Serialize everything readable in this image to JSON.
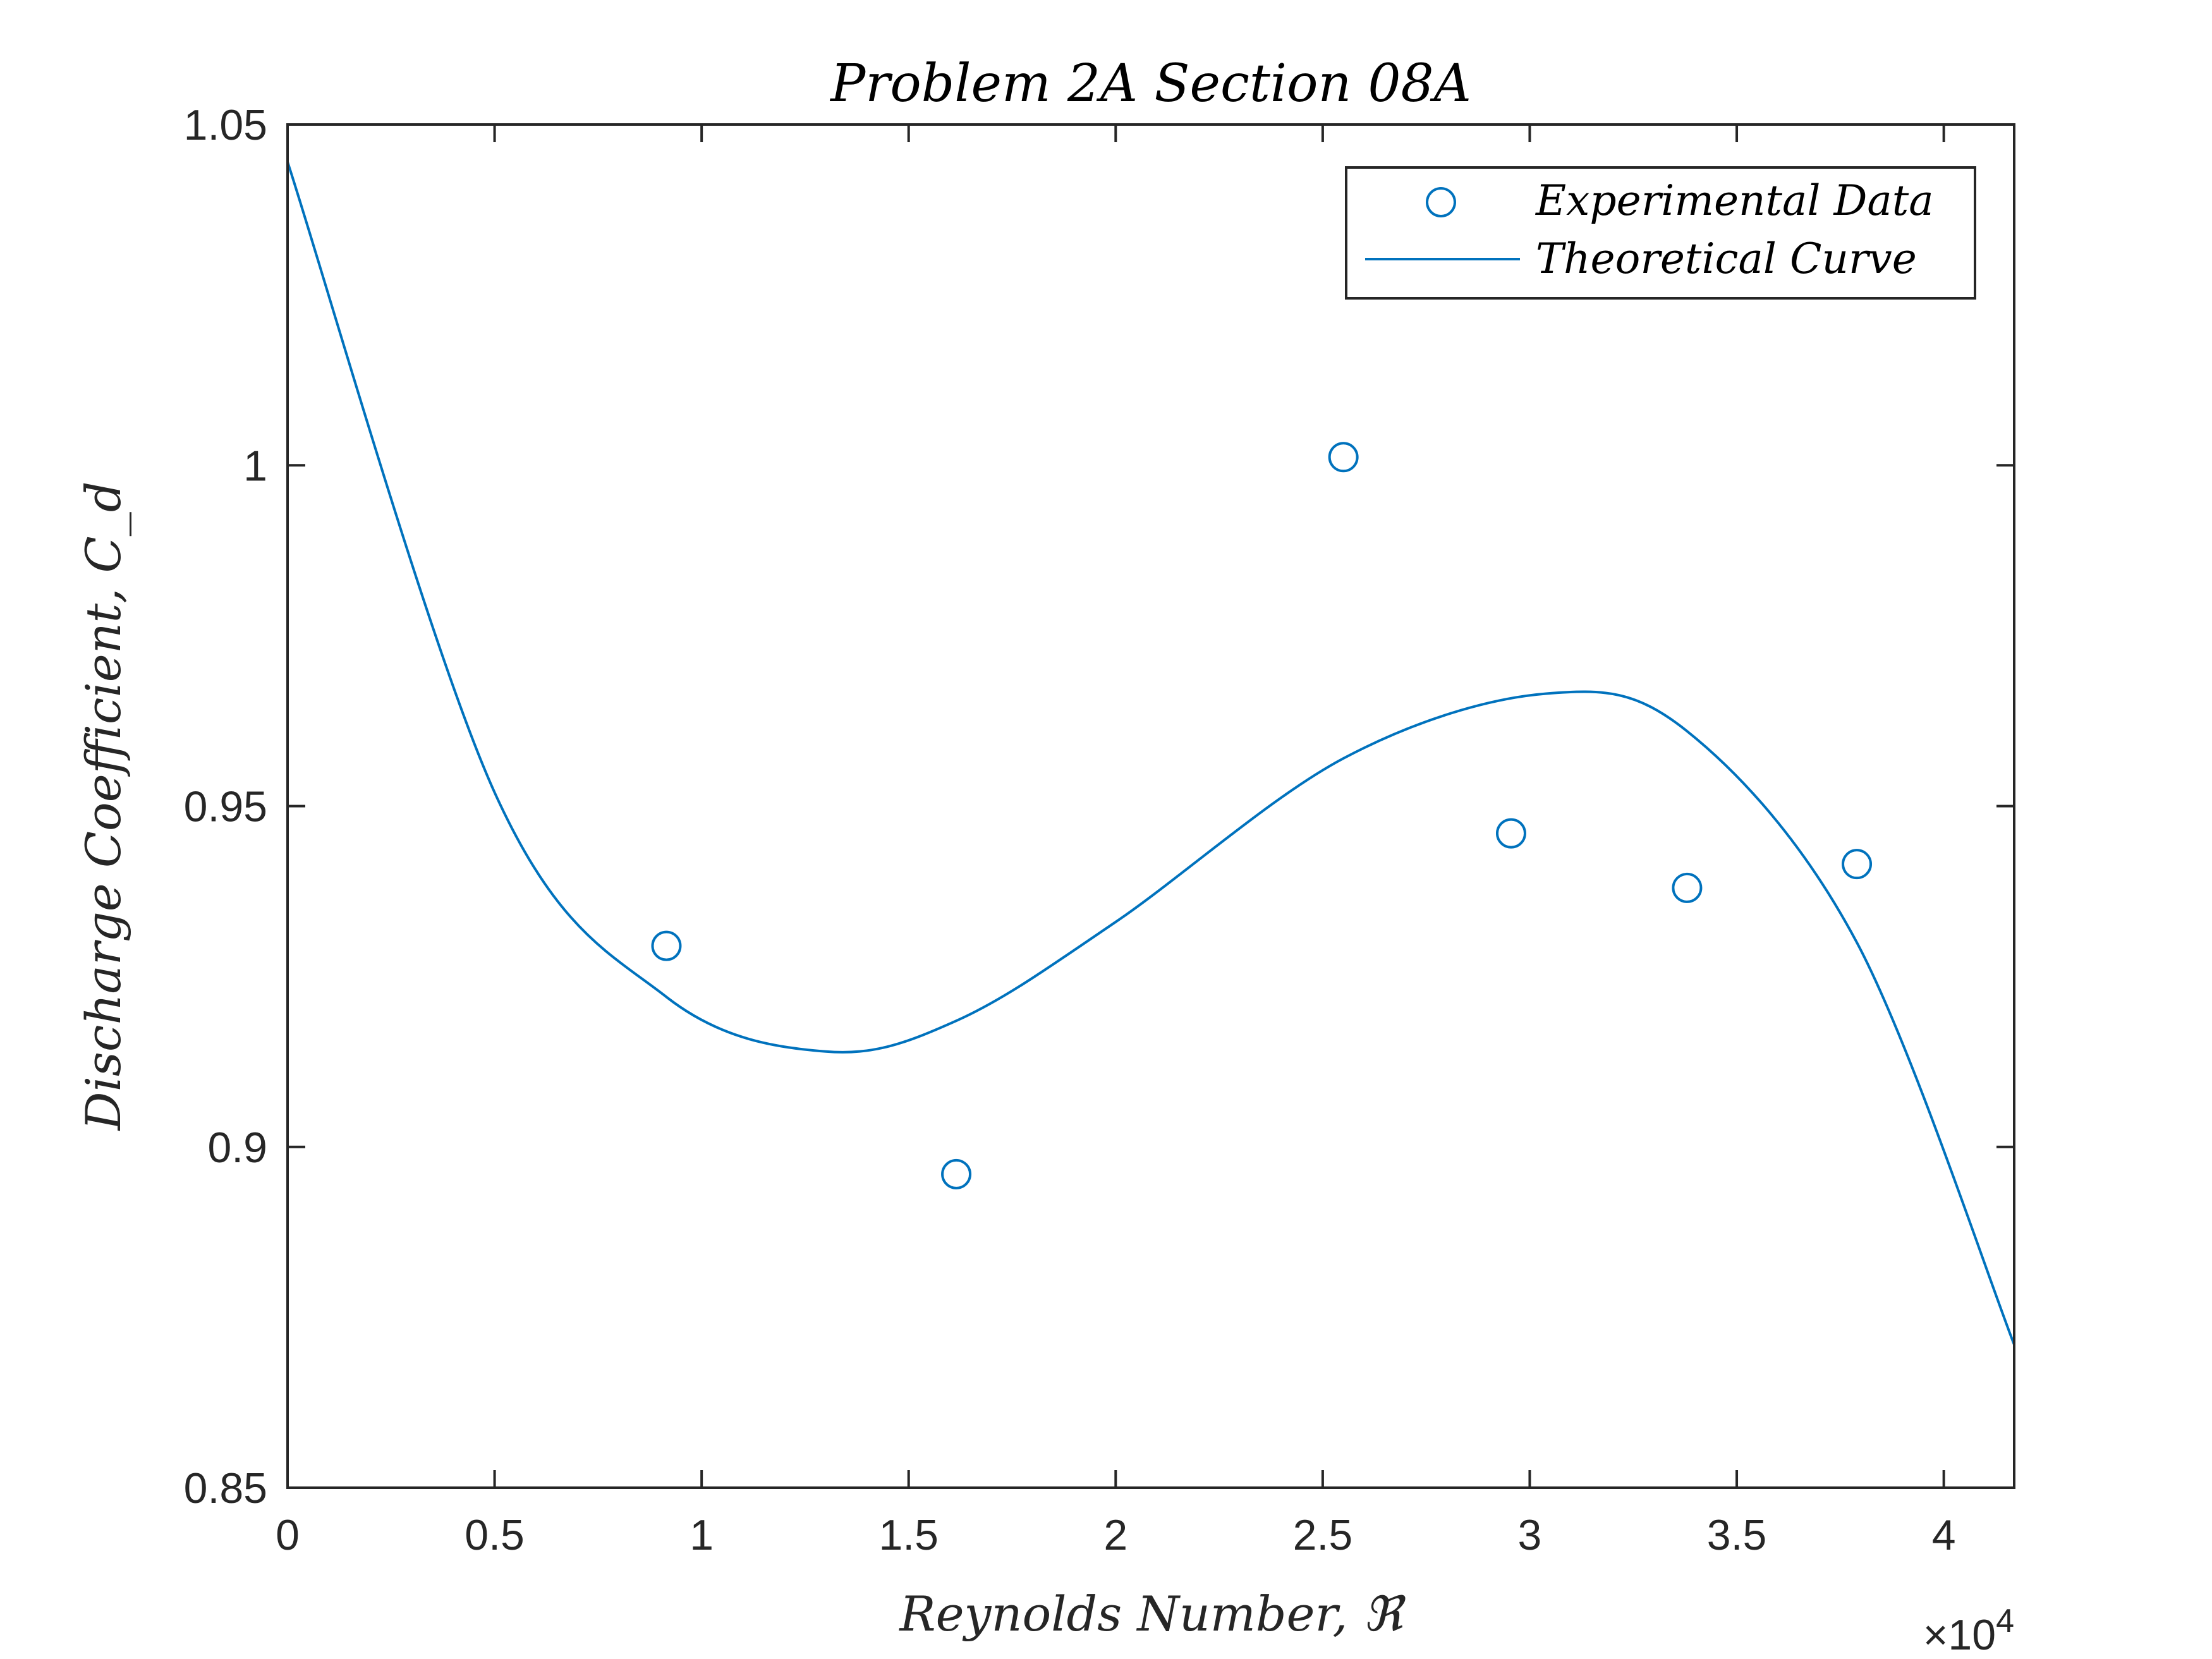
{
  "chart_data": {
    "type": "scatter",
    "title": "Problem 2A Section 08A",
    "xlabel": "Reynolds Number, ℜ",
    "ylabel": "Discharge Coefficient, C_d",
    "x_exponent_label": "×10^4",
    "xlim": [
      0,
      41700
    ],
    "ylim": [
      0.85,
      1.05
    ],
    "x_ticks": [
      0,
      5000,
      10000,
      15000,
      20000,
      25000,
      30000,
      35000,
      40000
    ],
    "x_tick_labels": [
      "0",
      "0.5",
      "1",
      "1.5",
      "2",
      "2.5",
      "3",
      "3.5",
      "4"
    ],
    "y_ticks": [
      0.85,
      0.9,
      0.95,
      1.0,
      1.05
    ],
    "y_tick_labels": [
      "0.85",
      "0.9",
      "0.95",
      "1",
      "1.05"
    ],
    "grid": false,
    "legend_position": "top-right",
    "colors": {
      "series": "#0072BD",
      "axes": "#262626",
      "background": "#ffffff"
    },
    "series": [
      {
        "name": "Experimental Data",
        "kind": "markers",
        "marker": "circle",
        "x": [
          9150,
          16150,
          25500,
          29550,
          33800,
          37900
        ],
        "y": [
          0.9295,
          0.896,
          1.0012,
          0.946,
          0.938,
          0.9415
        ]
      },
      {
        "name": "Theoretical Curve",
        "kind": "line",
        "x": [
          0,
          5000,
          9150,
          13000,
          16150,
          20000,
          25500,
          30400,
          33800,
          37900,
          41700
        ],
        "y": [
          1.0445,
          0.952,
          0.922,
          0.914,
          0.9185,
          0.933,
          0.957,
          0.9665,
          0.961,
          0.93,
          0.871
        ]
      }
    ]
  }
}
